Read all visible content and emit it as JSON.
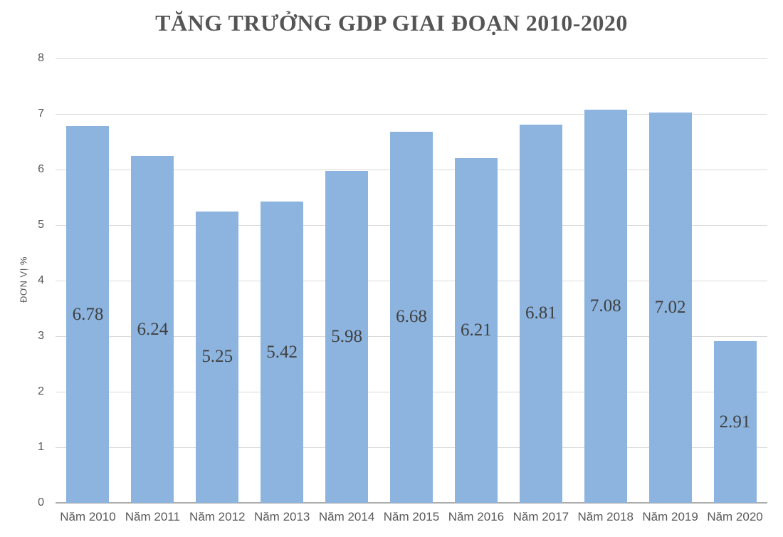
{
  "chart_data": {
    "type": "bar",
    "title": "TĂNG TRƯỞNG GDP GIAI ĐOẠN 2010-2020",
    "xlabel": "",
    "ylabel": "ĐƠN VỊ %",
    "categories": [
      "Năm 2010",
      "Năm 2011",
      "Năm 2012",
      "Năm 2013",
      "Năm 2014",
      "Năm 2015",
      "Năm 2016",
      "Năm 2017",
      "Năm 2018",
      "Năm 2019",
      "Năm 2020"
    ],
    "values": [
      6.78,
      6.24,
      5.25,
      5.42,
      5.98,
      6.68,
      6.21,
      6.81,
      7.08,
      7.02,
      2.91
    ],
    "data_labels": [
      "6.78",
      "6.24",
      "5.25",
      "5.42",
      "5.98",
      "6.68",
      "6.21",
      "6.81",
      "7.08",
      "7.02",
      "2.91"
    ],
    "ylim": [
      0,
      8
    ],
    "yticks": [
      0,
      1,
      2,
      3,
      4,
      5,
      6,
      7,
      8
    ],
    "grid": true,
    "legend_position": "none",
    "data_label_position": "inside-center",
    "colors": {
      "bar_fill": "#8cb4df",
      "gridline": "#d9d9d9",
      "axis_line": "#acacac",
      "title_text": "#555555",
      "tick_text": "#595959",
      "data_label_text": "#404040"
    }
  }
}
